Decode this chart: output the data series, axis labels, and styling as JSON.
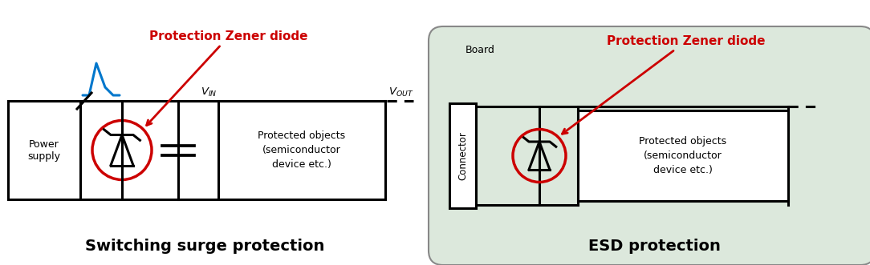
{
  "fig_width": 10.84,
  "fig_height": 3.31,
  "bg_color": "#ffffff",
  "board_bg_color": "#dce8dc",
  "title1": "Switching surge protection",
  "title2": "ESD protection",
  "label_zener": "Protection Zener diode",
  "label_protected": "Protected objects\n(semiconductor\ndevice etc.)",
  "label_power": "Power\nsupply",
  "label_board": "Board",
  "label_connector": "Connector",
  "label_vin": "V",
  "label_vin_sub": "IN",
  "label_vout": "V",
  "label_vout_sub": "OUT",
  "red_color": "#cc0000",
  "blue_color": "#0077cc",
  "black_color": "#000000",
  "gray_color": "#888888",
  "title_fontsize": 14,
  "small_fontsize": 9,
  "zener_label_fontsize": 11
}
